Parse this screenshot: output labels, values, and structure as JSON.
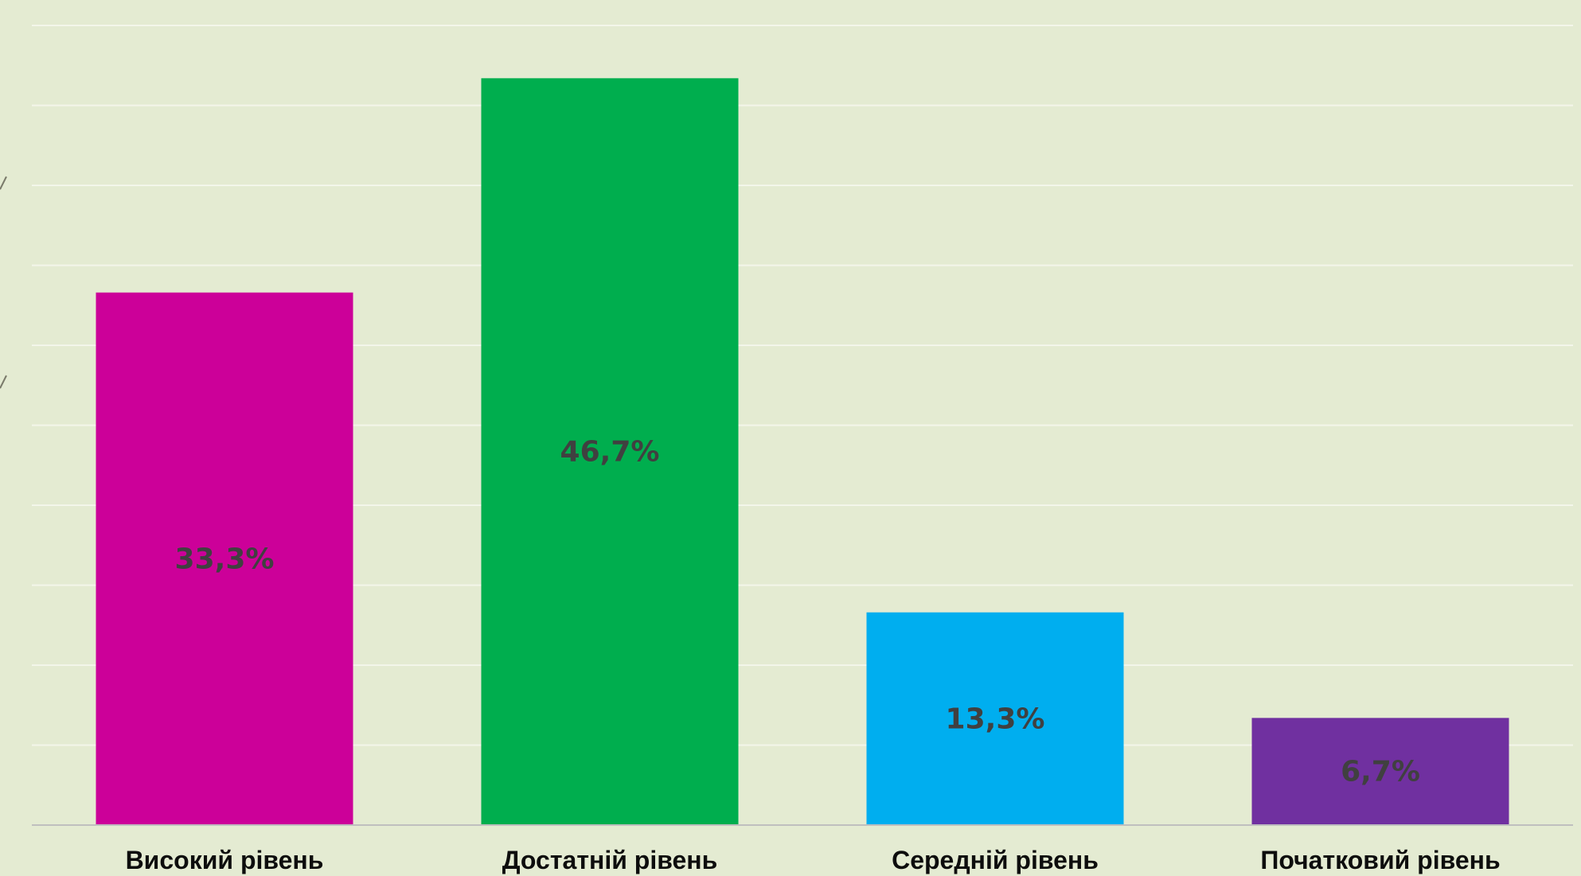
{
  "chart_data": {
    "type": "bar",
    "categories": [
      "Високий рівень",
      "Достатній рівень",
      "Середній рівень",
      "Початковий рівень"
    ],
    "values": [
      33.3,
      46.7,
      13.3,
      6.7
    ],
    "labels": [
      "33,3%",
      "46,7%",
      "13,3%",
      "6,7%"
    ],
    "colors": [
      "#cc0099",
      "#00ae4e",
      "#00aeef",
      "#7030a0"
    ],
    "ylim": [
      0,
      50
    ],
    "grid": true,
    "gridlines": 10,
    "legend": "none"
  },
  "colors": {
    "background": "#e4ebd2",
    "gridline": "#f3f6ea",
    "axis": "#bfbfbf",
    "label_text": "#404040",
    "category_text": "#0d0d0d"
  }
}
